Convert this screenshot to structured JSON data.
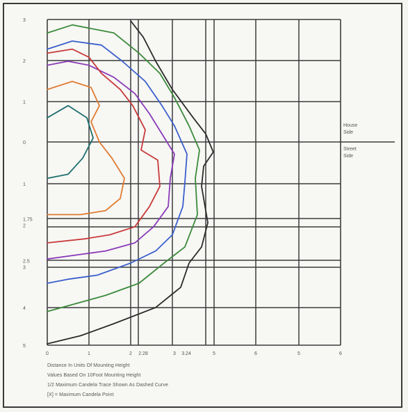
{
  "chart_data": {
    "type": "line",
    "title": "",
    "xlabel": "",
    "ylabel": "",
    "x_ticks": [
      "0",
      "1",
      "2",
      "2.28",
      "3",
      "3.24",
      "5",
      "6",
      "5",
      "6"
    ],
    "y_ticks": [
      "3",
      "2",
      "1",
      "0",
      "1",
      "1.75\n2",
      "2.5\n3",
      "4",
      "5"
    ],
    "side_labels": {
      "house_side": "House\nSide",
      "street_side": "Street\nSide"
    },
    "notes": [
      "Distance In Units Of Mounting Height",
      "Values Based On 10Foot Mounting Height",
      "1/2 Maximum Candela Trace Shown As Dashed Curve",
      "[X] = Maximum Candela Point"
    ],
    "grid": true,
    "series": [
      {
        "color": "#2a2a2a",
        "points": [
          [
            2.0,
            -3.0
          ],
          [
            2.3,
            -2.6
          ],
          [
            2.6,
            -2.0
          ],
          [
            3.0,
            -1.3
          ],
          [
            3.5,
            -0.6
          ],
          [
            3.8,
            -0.2
          ],
          [
            3.98,
            0.25
          ],
          [
            3.75,
            0.6
          ],
          [
            3.7,
            1.1
          ],
          [
            3.85,
            2.0
          ],
          [
            3.7,
            2.6
          ],
          [
            3.4,
            3.0
          ],
          [
            3.2,
            3.6
          ],
          [
            2.6,
            4.1
          ],
          [
            1.6,
            4.5
          ],
          [
            0.8,
            4.8
          ],
          [
            0.0,
            5.0
          ]
        ]
      },
      {
        "color": "#3a8a3a",
        "points": [
          [
            0.0,
            -2.7
          ],
          [
            0.6,
            -2.9
          ],
          [
            1.6,
            -2.7
          ],
          [
            2.2,
            -2.2
          ],
          [
            2.7,
            -1.7
          ],
          [
            3.05,
            -1.1
          ],
          [
            3.4,
            -0.4
          ],
          [
            3.65,
            0.2
          ],
          [
            3.55,
            0.9
          ],
          [
            3.6,
            1.8
          ],
          [
            3.3,
            2.6
          ],
          [
            2.8,
            3.0
          ],
          [
            2.2,
            3.5
          ],
          [
            1.4,
            3.8
          ],
          [
            0.7,
            4.0
          ],
          [
            0.0,
            4.2
          ]
        ]
      },
      {
        "color": "#3a5fcc",
        "points": [
          [
            0.0,
            -2.3
          ],
          [
            0.6,
            -2.5
          ],
          [
            1.3,
            -2.4
          ],
          [
            1.8,
            -2.0
          ],
          [
            2.35,
            -1.5
          ],
          [
            2.75,
            -0.9
          ],
          [
            3.05,
            -0.4
          ],
          [
            3.35,
            0.3
          ],
          [
            3.3,
            1.0
          ],
          [
            3.25,
            1.6
          ],
          [
            3.0,
            2.3
          ],
          [
            2.6,
            2.7
          ],
          [
            2.0,
            3.0
          ],
          [
            1.2,
            3.3
          ],
          [
            0.5,
            3.4
          ],
          [
            0.0,
            3.5
          ]
        ]
      },
      {
        "color": "#8a3ab8",
        "points": [
          [
            0.0,
            -1.9
          ],
          [
            0.5,
            -2.0
          ],
          [
            1.0,
            -1.9
          ],
          [
            1.6,
            -1.6
          ],
          [
            2.1,
            -1.2
          ],
          [
            2.45,
            -0.7
          ],
          [
            2.75,
            -0.2
          ],
          [
            3.05,
            0.3
          ],
          [
            2.95,
            0.9
          ],
          [
            2.9,
            1.6
          ],
          [
            2.55,
            2.1
          ],
          [
            2.1,
            2.5
          ],
          [
            1.4,
            2.7
          ],
          [
            0.7,
            2.8
          ],
          [
            0.0,
            2.9
          ]
        ]
      },
      {
        "color": "#c83a3a",
        "points": [
          [
            0.0,
            -2.2
          ],
          [
            0.6,
            -2.3
          ],
          [
            1.0,
            -2.1
          ],
          [
            1.3,
            -1.7
          ],
          [
            1.75,
            -1.3
          ],
          [
            2.05,
            -0.9
          ],
          [
            2.35,
            -0.3
          ],
          [
            2.25,
            0.2
          ],
          [
            2.65,
            0.45
          ],
          [
            2.7,
            1.1
          ],
          [
            2.45,
            1.6
          ],
          [
            2.1,
            2.1
          ],
          [
            1.5,
            2.3
          ],
          [
            0.9,
            2.4
          ],
          [
            0.0,
            2.5
          ]
        ]
      },
      {
        "color": "#e07a30",
        "points": [
          [
            0.0,
            -1.3
          ],
          [
            0.6,
            -1.5
          ],
          [
            1.05,
            -1.35
          ],
          [
            1.25,
            -0.9
          ],
          [
            1.05,
            -0.5
          ],
          [
            1.25,
            0.0
          ],
          [
            1.55,
            0.4
          ],
          [
            1.85,
            0.9
          ],
          [
            1.75,
            1.4
          ],
          [
            1.4,
            1.7
          ],
          [
            0.8,
            1.8
          ],
          [
            0.0,
            1.8
          ]
        ]
      },
      {
        "color": "#1f6f6f",
        "points": [
          [
            0.0,
            -0.6
          ],
          [
            0.5,
            -0.9
          ],
          [
            0.95,
            -0.6
          ],
          [
            1.1,
            -0.1
          ],
          [
            0.85,
            0.4
          ],
          [
            0.5,
            0.8
          ],
          [
            0.0,
            0.9
          ]
        ]
      }
    ]
  }
}
